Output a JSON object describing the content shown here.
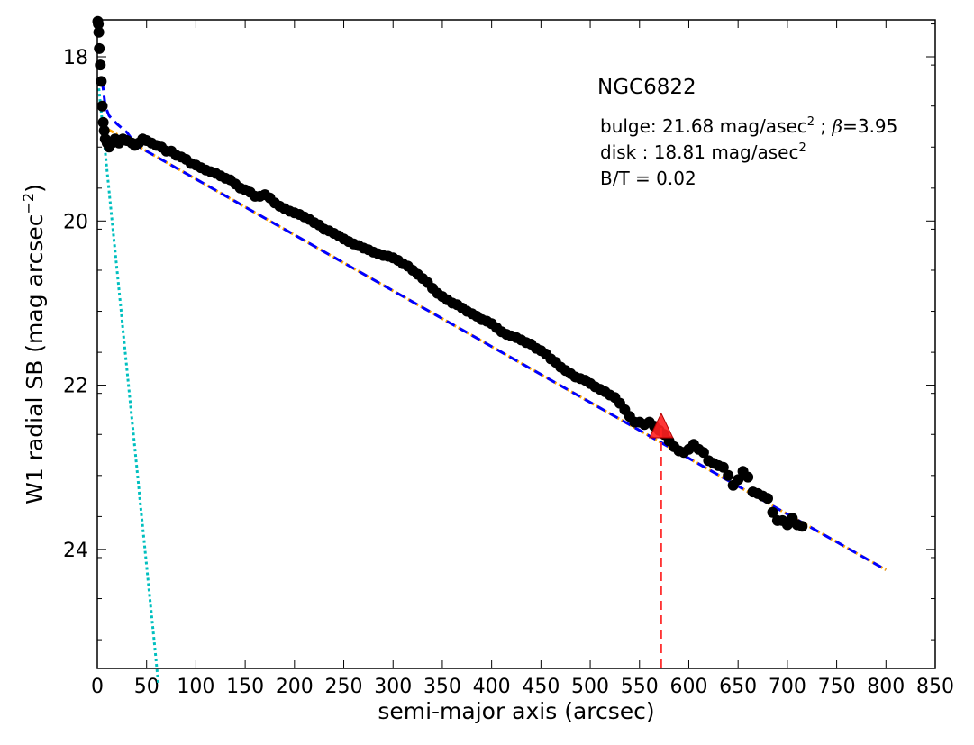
{
  "chart_data": {
    "type": "scatter",
    "title": "NGC6822",
    "xlabel": "semi-major axis (arcsec)",
    "ylabel": "W1 radial SB (mag arcsec",
    "ylabel_sup": "−2",
    "ylabel_close": ")",
    "xlim": [
      0,
      850
    ],
    "ylim": [
      25.45,
      17.55
    ],
    "y_inverted": true,
    "x_ticks": [
      0,
      50,
      100,
      150,
      200,
      250,
      300,
      350,
      400,
      450,
      500,
      550,
      600,
      650,
      700,
      750,
      800,
      850
    ],
    "y_ticks": [
      18,
      20,
      22,
      24
    ],
    "annotations": {
      "bulge_prefix": "bulge: 21.68 mag/asec",
      "bulge_sup": "2",
      "bulge_mid": " ; ",
      "beta_symbol": "β",
      "bulge_suffix": "=3.95",
      "disk_prefix": "disk  : 18.81 mag/asec",
      "disk_sup": "2",
      "bt": "B/T = 0.02"
    },
    "observed_points": [
      [
        0.5,
        17.5
      ],
      [
        1,
        17.6
      ],
      [
        1.5,
        17.7
      ],
      [
        2,
        17.9
      ],
      [
        3,
        18.1
      ],
      [
        4,
        18.3
      ],
      [
        5,
        18.6
      ],
      [
        6,
        18.8
      ],
      [
        7,
        18.9
      ],
      [
        8,
        19.0
      ],
      [
        10,
        19.05
      ],
      [
        12,
        19.1
      ],
      [
        15,
        19.05
      ],
      [
        18,
        19.0
      ],
      [
        22,
        19.05
      ],
      [
        26,
        19.0
      ],
      [
        30,
        19.02
      ],
      [
        35,
        19.05
      ],
      [
        38,
        19.08
      ],
      [
        42,
        19.05
      ],
      [
        46,
        19.0
      ],
      [
        50,
        19.02
      ],
      [
        55,
        19.05
      ],
      [
        60,
        19.08
      ],
      [
        65,
        19.1
      ],
      [
        70,
        19.15
      ],
      [
        75,
        19.15
      ],
      [
        80,
        19.2
      ],
      [
        85,
        19.22
      ],
      [
        90,
        19.25
      ],
      [
        95,
        19.3
      ],
      [
        100,
        19.32
      ],
      [
        105,
        19.35
      ],
      [
        110,
        19.38
      ],
      [
        115,
        19.4
      ],
      [
        120,
        19.42
      ],
      [
        125,
        19.45
      ],
      [
        130,
        19.48
      ],
      [
        135,
        19.5
      ],
      [
        140,
        19.55
      ],
      [
        145,
        19.6
      ],
      [
        150,
        19.62
      ],
      [
        155,
        19.65
      ],
      [
        160,
        19.7
      ],
      [
        165,
        19.7
      ],
      [
        170,
        19.68
      ],
      [
        175,
        19.72
      ],
      [
        180,
        19.78
      ],
      [
        185,
        19.82
      ],
      [
        190,
        19.85
      ],
      [
        195,
        19.88
      ],
      [
        200,
        19.9
      ],
      [
        205,
        19.92
      ],
      [
        210,
        19.95
      ],
      [
        215,
        19.98
      ],
      [
        220,
        20.02
      ],
      [
        225,
        20.05
      ],
      [
        230,
        20.1
      ],
      [
        235,
        20.12
      ],
      [
        240,
        20.15
      ],
      [
        245,
        20.18
      ],
      [
        250,
        20.22
      ],
      [
        255,
        20.25
      ],
      [
        260,
        20.28
      ],
      [
        265,
        20.3
      ],
      [
        270,
        20.33
      ],
      [
        275,
        20.35
      ],
      [
        280,
        20.38
      ],
      [
        285,
        20.4
      ],
      [
        290,
        20.42
      ],
      [
        295,
        20.43
      ],
      [
        300,
        20.45
      ],
      [
        305,
        20.48
      ],
      [
        310,
        20.52
      ],
      [
        315,
        20.55
      ],
      [
        320,
        20.6
      ],
      [
        325,
        20.65
      ],
      [
        330,
        20.7
      ],
      [
        335,
        20.75
      ],
      [
        340,
        20.82
      ],
      [
        345,
        20.88
      ],
      [
        350,
        20.92
      ],
      [
        355,
        20.96
      ],
      [
        360,
        21.0
      ],
      [
        365,
        21.02
      ],
      [
        370,
        21.06
      ],
      [
        375,
        21.1
      ],
      [
        380,
        21.13
      ],
      [
        385,
        21.16
      ],
      [
        390,
        21.2
      ],
      [
        395,
        21.22
      ],
      [
        400,
        21.25
      ],
      [
        405,
        21.3
      ],
      [
        410,
        21.35
      ],
      [
        415,
        21.38
      ],
      [
        420,
        21.4
      ],
      [
        425,
        21.42
      ],
      [
        430,
        21.45
      ],
      [
        435,
        21.48
      ],
      [
        440,
        21.5
      ],
      [
        445,
        21.55
      ],
      [
        450,
        21.58
      ],
      [
        455,
        21.62
      ],
      [
        460,
        21.68
      ],
      [
        465,
        21.72
      ],
      [
        470,
        21.78
      ],
      [
        475,
        21.82
      ],
      [
        480,
        21.86
      ],
      [
        485,
        21.9
      ],
      [
        490,
        21.92
      ],
      [
        495,
        21.94
      ],
      [
        500,
        21.98
      ],
      [
        505,
        22.02
      ],
      [
        510,
        22.05
      ],
      [
        515,
        22.08
      ],
      [
        520,
        22.12
      ],
      [
        525,
        22.15
      ],
      [
        530,
        22.22
      ],
      [
        535,
        22.3
      ],
      [
        540,
        22.38
      ],
      [
        545,
        22.45
      ],
      [
        550,
        22.45
      ],
      [
        555,
        22.48
      ],
      [
        560,
        22.45
      ],
      [
        565,
        22.5
      ],
      [
        570,
        22.55
      ],
      [
        575,
        22.6
      ],
      [
        580,
        22.68
      ],
      [
        585,
        22.75
      ],
      [
        590,
        22.8
      ],
      [
        595,
        22.82
      ],
      [
        600,
        22.78
      ],
      [
        605,
        22.72
      ],
      [
        610,
        22.78
      ],
      [
        615,
        22.82
      ],
      [
        620,
        22.92
      ],
      [
        625,
        22.95
      ],
      [
        630,
        22.98
      ],
      [
        635,
        23.0
      ],
      [
        640,
        23.1
      ],
      [
        645,
        23.22
      ],
      [
        650,
        23.15
      ],
      [
        655,
        23.05
      ],
      [
        660,
        23.12
      ],
      [
        665,
        23.3
      ],
      [
        670,
        23.32
      ],
      [
        675,
        23.35
      ],
      [
        680,
        23.38
      ],
      [
        685,
        23.55
      ],
      [
        690,
        23.65
      ],
      [
        695,
        23.65
      ],
      [
        700,
        23.7
      ],
      [
        705,
        23.62
      ],
      [
        710,
        23.7
      ],
      [
        715,
        23.72
      ]
    ],
    "break_point": {
      "x": 572,
      "y": 22.52
    },
    "models": {
      "total_color": "#0000ff",
      "disk_color": "#ffa500",
      "bulge_color": "#00bfbf",
      "break_color": "#ff3333",
      "marker_color": "#000000",
      "triangle_color": "#ff2020"
    }
  }
}
